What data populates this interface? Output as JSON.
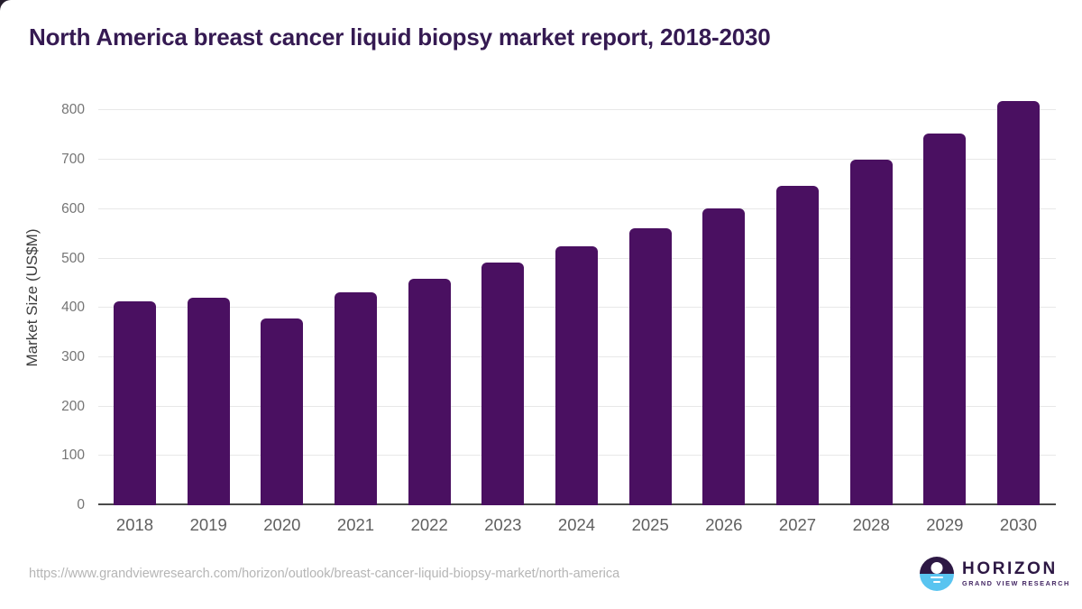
{
  "page": {
    "title": "North America breast cancer liquid biopsy market report, 2018-2030"
  },
  "chart_data": {
    "type": "bar",
    "title": "North America breast cancer liquid biopsy market report, 2018-2030",
    "categories": [
      "2018",
      "2019",
      "2020",
      "2021",
      "2022",
      "2023",
      "2024",
      "2025",
      "2026",
      "2027",
      "2028",
      "2029",
      "2030"
    ],
    "values": [
      414,
      421,
      379,
      431,
      459,
      491,
      524,
      561,
      601,
      647,
      700,
      754,
      819
    ],
    "xlabel": "",
    "ylabel": "Market Size (US$M)",
    "yticks": [
      0,
      100,
      200,
      300,
      400,
      500,
      600,
      700,
      800
    ],
    "ylim": [
      0,
      841
    ],
    "grid": "horizontal",
    "legend": "none",
    "bar_color": "#4a1061"
  },
  "colors": {
    "title_text": "#351a52",
    "bar": "#4a1061",
    "gridline": "#e8e8e8",
    "axis_line": "#4a4a4a",
    "y_tick_label": "#757575",
    "x_tick_label": "#606060",
    "axis_title": "#3d3d3d",
    "footer_text": "#b5b5b5",
    "logo_purple": "#2d1844",
    "logo_blue": "#59c4f0"
  },
  "footer": {
    "source_url": "https://www.grandviewresearch.com/horizon/outlook/breast-cancer-liquid-biopsy-market/north-america"
  },
  "logo": {
    "brand": "HORIZON",
    "tagline": "GRAND VIEW RESEARCH"
  }
}
